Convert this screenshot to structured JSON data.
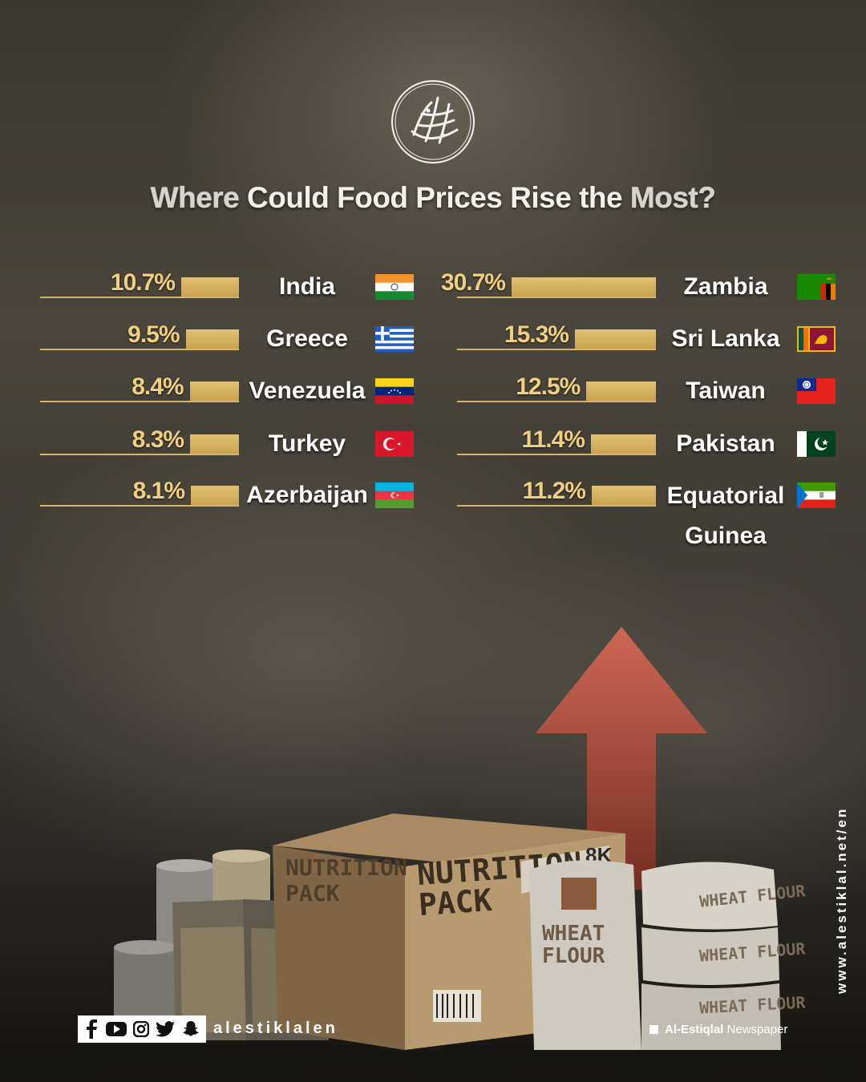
{
  "header": {
    "title_part1": "Where",
    "title_part2": " Could Food Prices Rise the ",
    "title_part3": "Most?"
  },
  "chart_data": {
    "type": "bar",
    "title": "Where Could Food Prices Rise the Most?",
    "unit": "%",
    "left_column": [
      {
        "country": "India",
        "value": 10.7,
        "label": "10.7%",
        "flag": "india-flag"
      },
      {
        "country": "Greece",
        "value": 9.5,
        "label": "9.5%",
        "flag": "greece-flag"
      },
      {
        "country": "Venezuela",
        "value": 8.4,
        "label": "8.4%",
        "flag": "venezuela-flag"
      },
      {
        "country": "Turkey",
        "value": 8.3,
        "label": "8.3%",
        "flag": "turkey-flag"
      },
      {
        "country": "Azerbaijan",
        "value": 8.1,
        "label": "8.1%",
        "flag": "azerbaijan-flag"
      }
    ],
    "right_column": [
      {
        "country": "Zambia",
        "value": 30.7,
        "label": "30.7%",
        "flag": "zambia-flag"
      },
      {
        "country": "Sri Lanka",
        "value": 15.3,
        "label": "15.3%",
        "flag": "sri-lanka-flag"
      },
      {
        "country": "Taiwan",
        "value": 12.5,
        "label": "12.5%",
        "flag": "taiwan-flag"
      },
      {
        "country": "Pakistan",
        "value": 11.4,
        "label": "11.4%",
        "flag": "pakistan-flag"
      },
      {
        "country": "Equatorial Guinea",
        "value": 11.2,
        "label": "11.2%",
        "flag": "equatorial-guinea-flag"
      }
    ],
    "bar_color": "#d8b563"
  },
  "scene": {
    "box_label_1": "NUTRITION",
    "box_label_2": "PACK",
    "box_badge": "8K",
    "sack_label_1": "WHEAT",
    "sack_label_2": "FLOUR",
    "sack_stack_label": "WHEAT FLOUR"
  },
  "footer": {
    "social_icons": [
      "facebook-icon",
      "youtube-icon",
      "instagram-icon",
      "twitter-icon",
      "snapchat-icon"
    ],
    "handle": "alestiklalen",
    "newspaper_bold": "Al-Estiqlal",
    "newspaper_rest": " Newspaper",
    "website": "www.alestiklal.net/en"
  }
}
